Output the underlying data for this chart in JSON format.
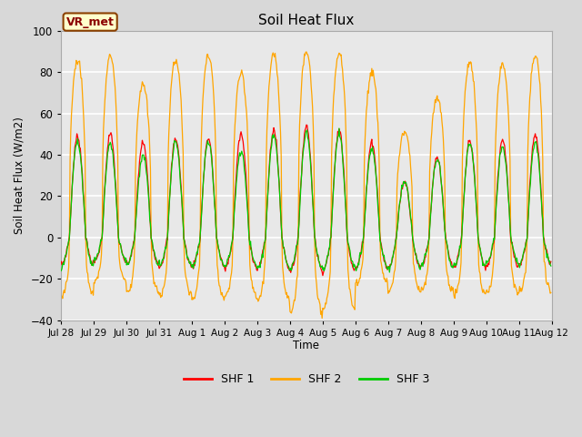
{
  "title": "Soil Heat Flux",
  "ylabel": "Soil Heat Flux (W/m2)",
  "xlabel": "Time",
  "ylim": [
    -40,
    100
  ],
  "background_color": "#d8d8d8",
  "plot_bg_color": "#e8e8e8",
  "grid_color": "#ffffff",
  "annotation_text": "VR_met",
  "annotation_box_facecolor": "#ffffcc",
  "annotation_border_color": "#8B4000",
  "annotation_text_color": "#8B0000",
  "series_colors": {
    "SHF 1": "#ff0000",
    "SHF 2": "#ffa500",
    "SHF 3": "#00cc00"
  },
  "xtick_labels": [
    "Jul 28",
    "Jul 29",
    "Jul 30",
    "Jul 31",
    "Aug 1",
    "Aug 2",
    "Aug 3",
    "Aug 4",
    "Aug 5",
    "Aug 6",
    "Aug 7",
    "Aug 8",
    "Aug 9",
    "Aug 10",
    "Aug 11",
    "Aug 12"
  ],
  "num_days": 15,
  "points_per_day": 48,
  "shf2_peaks": [
    86,
    88,
    74,
    86,
    88,
    79,
    88,
    91,
    89,
    80,
    51,
    68,
    85,
    84,
    88
  ],
  "shf2_troughs": [
    -28,
    -21,
    -27,
    -28,
    -30,
    -29,
    -30,
    -36,
    -35,
    -22,
    -26,
    -26,
    -28,
    -27,
    -26
  ],
  "shf1_peaks": [
    49,
    50,
    46,
    48,
    48,
    50,
    52,
    54,
    52,
    46,
    27,
    39,
    47,
    47,
    50
  ],
  "shf1_troughs": [
    -13,
    -12,
    -13,
    -14,
    -14,
    -15,
    -15,
    -16,
    -16,
    -15,
    -15,
    -14,
    -15,
    -14,
    -13
  ],
  "shf3_peaks": [
    46,
    46,
    40,
    46,
    47,
    42,
    50,
    51,
    50,
    43,
    27,
    38,
    46,
    44,
    46
  ],
  "shf3_troughs": [
    -14,
    -11,
    -13,
    -14,
    -14,
    -14,
    -15,
    -15,
    -15,
    -15,
    -15,
    -14,
    -14,
    -13,
    -13
  ]
}
